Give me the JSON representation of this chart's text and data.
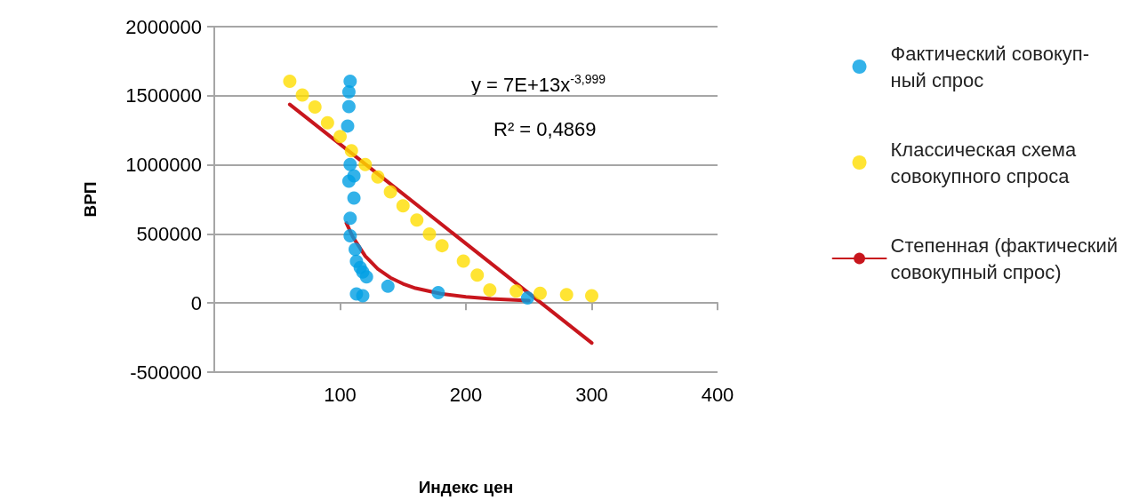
{
  "chart_data": {
    "type": "scatter",
    "xlabel": "Индекс цен",
    "ylabel": "ВРП",
    "annotations": [
      "y = 7E+13x$^{-3,999}$",
      "R² = 0,4869"
    ],
    "xlim": [
      0,
      400
    ],
    "xticks": [
      100,
      200,
      300,
      400
    ],
    "ylim": [
      -500000,
      2000000
    ],
    "yticks": [
      -500000,
      0,
      500000,
      1000000,
      1500000,
      2000000
    ],
    "grid": "y",
    "legend": "right",
    "series": [
      {
        "name": "Фактический совокуп-\nный спрос",
        "marker": "circle",
        "color": "#009fe3",
        "x": [
          108,
          107,
          107,
          106,
          108,
          111,
          107,
          111,
          108,
          108,
          112,
          113,
          116,
          118,
          121,
          138,
          113,
          118,
          178,
          249
        ],
        "values": [
          1605000,
          1527000,
          1422000,
          1281000,
          1002000,
          920000,
          881000,
          759000,
          614000,
          486000,
          389000,
          301000,
          257000,
          224000,
          189000,
          121000,
          65000,
          53000,
          75000,
          36000
        ]
      },
      {
        "name": "Классическая схема\nсовокупного спроса",
        "marker": "circle",
        "color": "#ffdd00",
        "x": [
          60,
          70,
          80,
          90,
          100,
          109,
          120,
          130,
          140,
          150,
          161,
          171,
          181,
          198,
          209,
          219,
          240,
          259,
          280,
          300
        ],
        "values": [
          1604000,
          1505000,
          1418000,
          1305000,
          1204000,
          1102000,
          1002000,
          912000,
          804000,
          704000,
          600000,
          500000,
          415000,
          303000,
          202000,
          95000,
          87000,
          70000,
          61000,
          53000
        ]
      },
      {
        "name": "Степенная (фактический\nсовокупный спрос)",
        "type": "line",
        "marker": "none",
        "color": "#c8161d",
        "x": [
          105,
          110,
          120,
          130,
          140,
          150,
          160,
          180,
          200,
          220,
          250
        ],
        "values": [
          579000,
          480000,
          339000,
          246000,
          183000,
          139000,
          107000,
          67000,
          44000,
          30000,
          18000
        ]
      },
      {
        "type": "line",
        "marker": "none",
        "color": "#c8161d",
        "x": [
          60,
          300
        ],
        "values": [
          1437000,
          -289000
        ]
      }
    ]
  }
}
